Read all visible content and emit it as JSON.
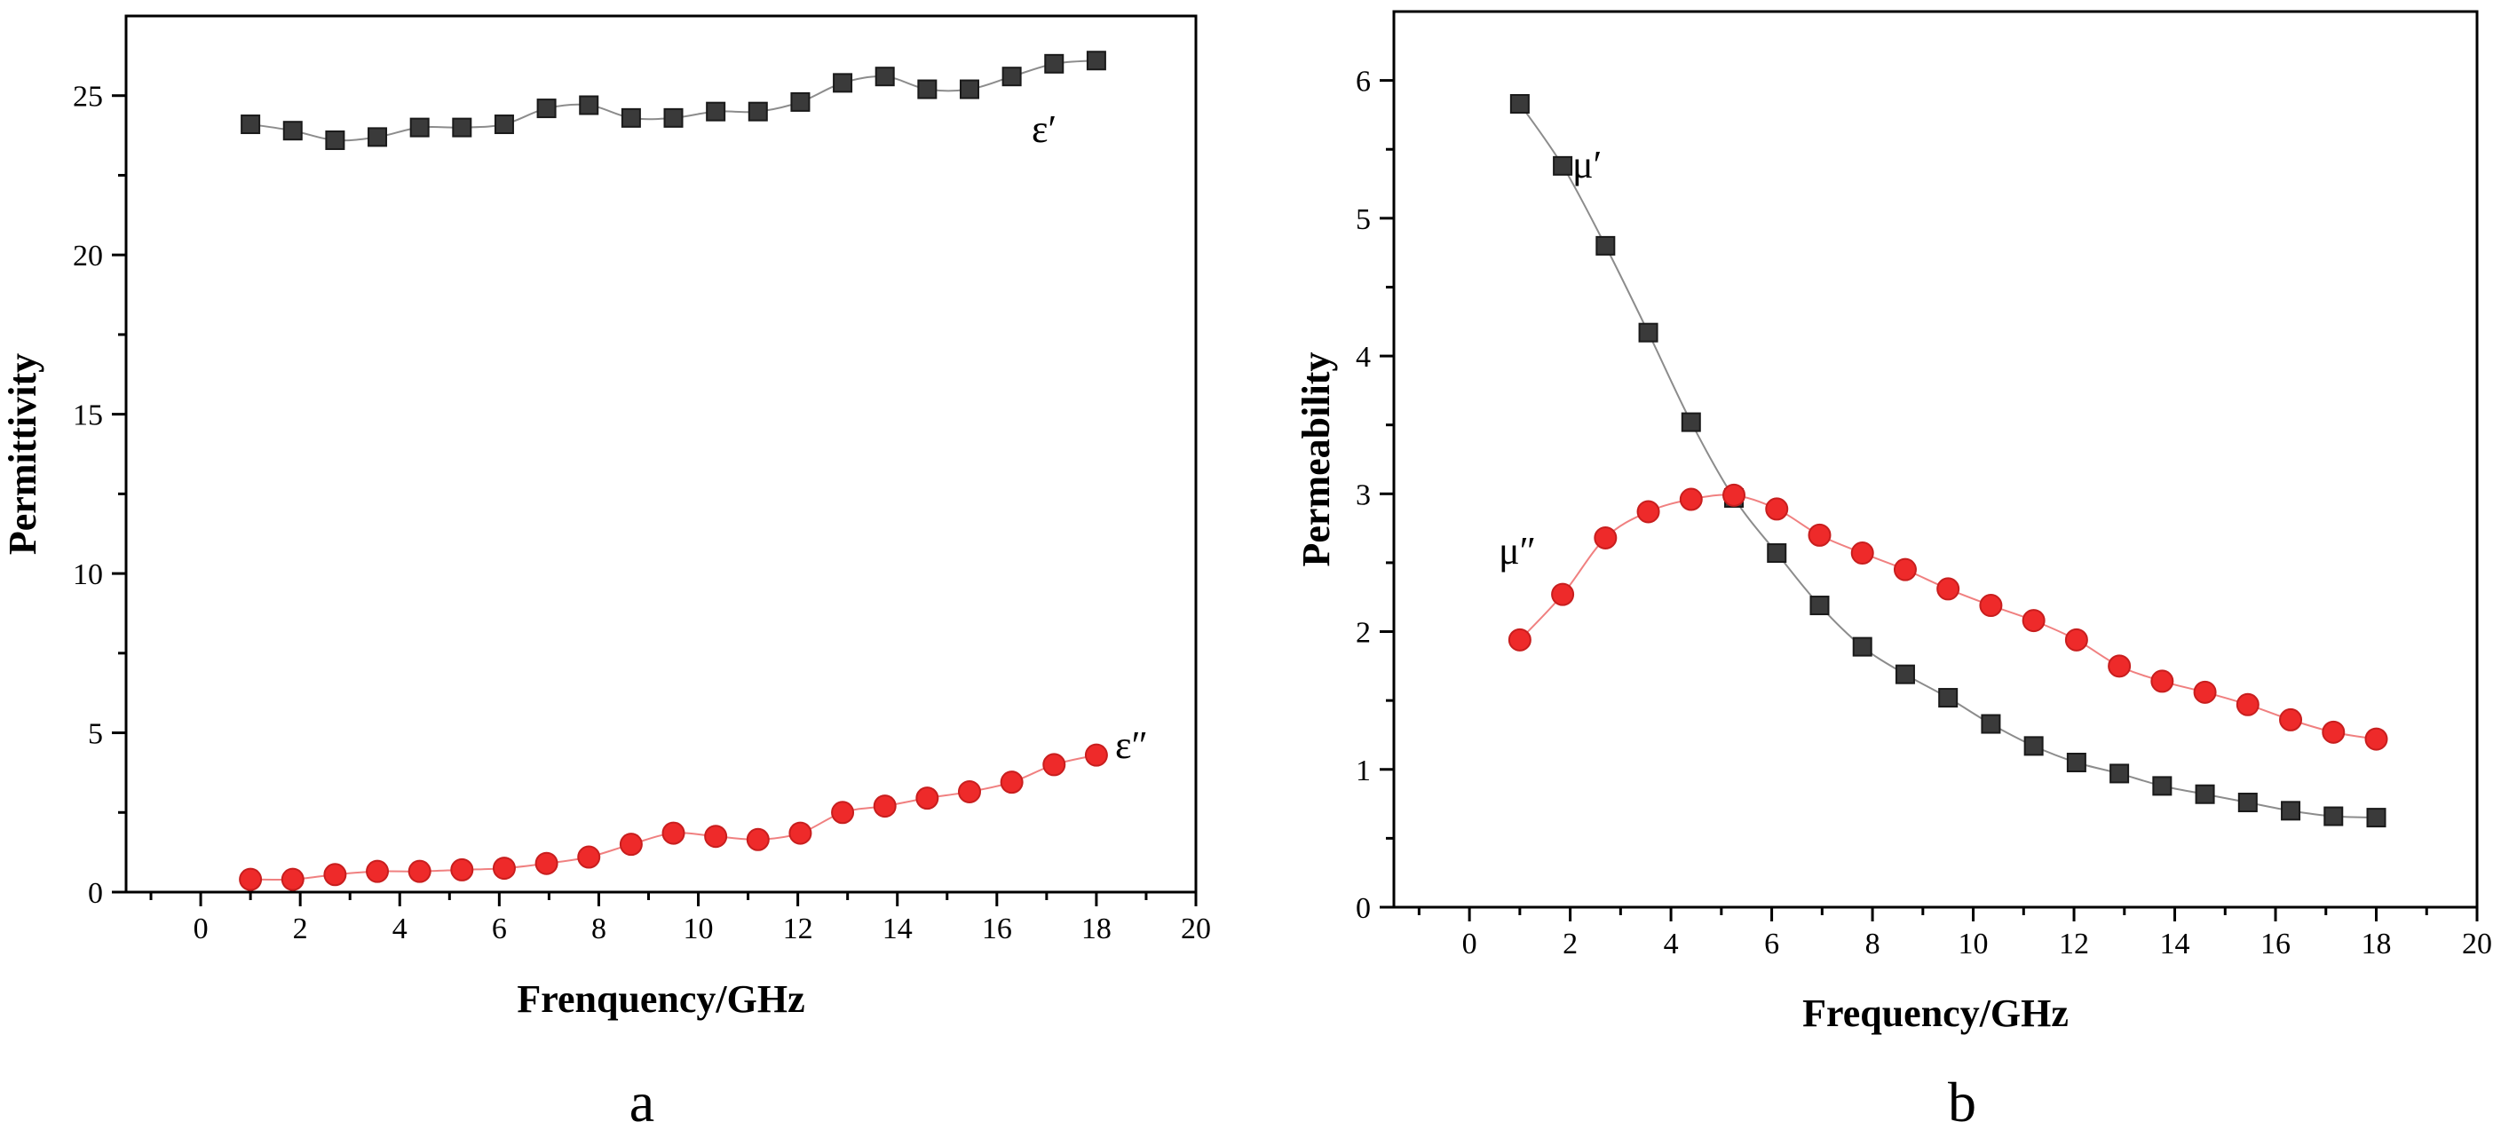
{
  "colors": {
    "real_series": "#3a3a3a",
    "imag_series": "#ee2a2a",
    "real_line": "#8c8c8c",
    "imag_line": "#f08080",
    "axes": "#000000"
  },
  "chart_data": [
    {
      "type": "line",
      "panel_label": "a",
      "xlabel": "Frenquency/GHz",
      "ylabel": "Permittivity",
      "xlim": [
        -1.5,
        20
      ],
      "ylim": [
        0,
        27.5
      ],
      "xticks": [
        0,
        2,
        4,
        6,
        8,
        10,
        12,
        14,
        16,
        18,
        20
      ],
      "yticks": [
        0,
        5,
        10,
        15,
        20,
        25
      ],
      "grid": false,
      "x": [
        1.0,
        1.85,
        2.7,
        3.55,
        4.4,
        5.25,
        6.1,
        6.95,
        7.8,
        8.65,
        9.5,
        10.35,
        11.2,
        12.05,
        12.9,
        13.75,
        14.6,
        15.45,
        16.3,
        17.15,
        18.0
      ],
      "series": [
        {
          "name": "ε′",
          "marker": "square",
          "values": [
            24.1,
            23.9,
            23.6,
            23.7,
            24.0,
            24.0,
            24.1,
            24.6,
            24.7,
            24.3,
            24.3,
            24.5,
            24.5,
            24.8,
            25.4,
            25.6,
            25.2,
            25.2,
            25.6,
            26.0,
            26.1
          ]
        },
        {
          "name": "ε″",
          "marker": "circle",
          "values": [
            0.4,
            0.4,
            0.55,
            0.65,
            0.65,
            0.7,
            0.75,
            0.9,
            1.1,
            1.5,
            1.85,
            1.75,
            1.65,
            1.85,
            2.5,
            2.7,
            2.95,
            3.15,
            3.45,
            4.0,
            4.3
          ]
        }
      ]
    },
    {
      "type": "line",
      "panel_label": "b",
      "xlabel": "Frequency/GHz",
      "ylabel": "Permeability",
      "xlim": [
        -1.5,
        20
      ],
      "ylim": [
        0,
        6.5
      ],
      "xticks": [
        0,
        2,
        4,
        6,
        8,
        10,
        12,
        14,
        16,
        18,
        20
      ],
      "yticks": [
        0,
        1,
        2,
        3,
        4,
        5,
        6
      ],
      "grid": false,
      "x": [
        1.0,
        1.85,
        2.7,
        3.55,
        4.4,
        5.25,
        6.1,
        6.95,
        7.8,
        8.65,
        9.5,
        10.35,
        11.2,
        12.05,
        12.9,
        13.75,
        14.6,
        15.45,
        16.3,
        17.15,
        18.0
      ],
      "series": [
        {
          "name": "μ′",
          "marker": "square",
          "values": [
            5.83,
            5.38,
            4.8,
            4.17,
            3.52,
            2.97,
            2.57,
            2.19,
            1.89,
            1.69,
            1.52,
            1.33,
            1.17,
            1.05,
            0.97,
            0.88,
            0.82,
            0.76,
            0.7,
            0.66,
            0.65
          ]
        },
        {
          "name": "μ″",
          "marker": "circle",
          "values": [
            1.94,
            2.27,
            2.68,
            2.87,
            2.96,
            2.99,
            2.89,
            2.7,
            2.57,
            2.45,
            2.31,
            2.19,
            2.08,
            1.94,
            1.75,
            1.64,
            1.56,
            1.47,
            1.36,
            1.27,
            1.22
          ]
        }
      ]
    }
  ]
}
